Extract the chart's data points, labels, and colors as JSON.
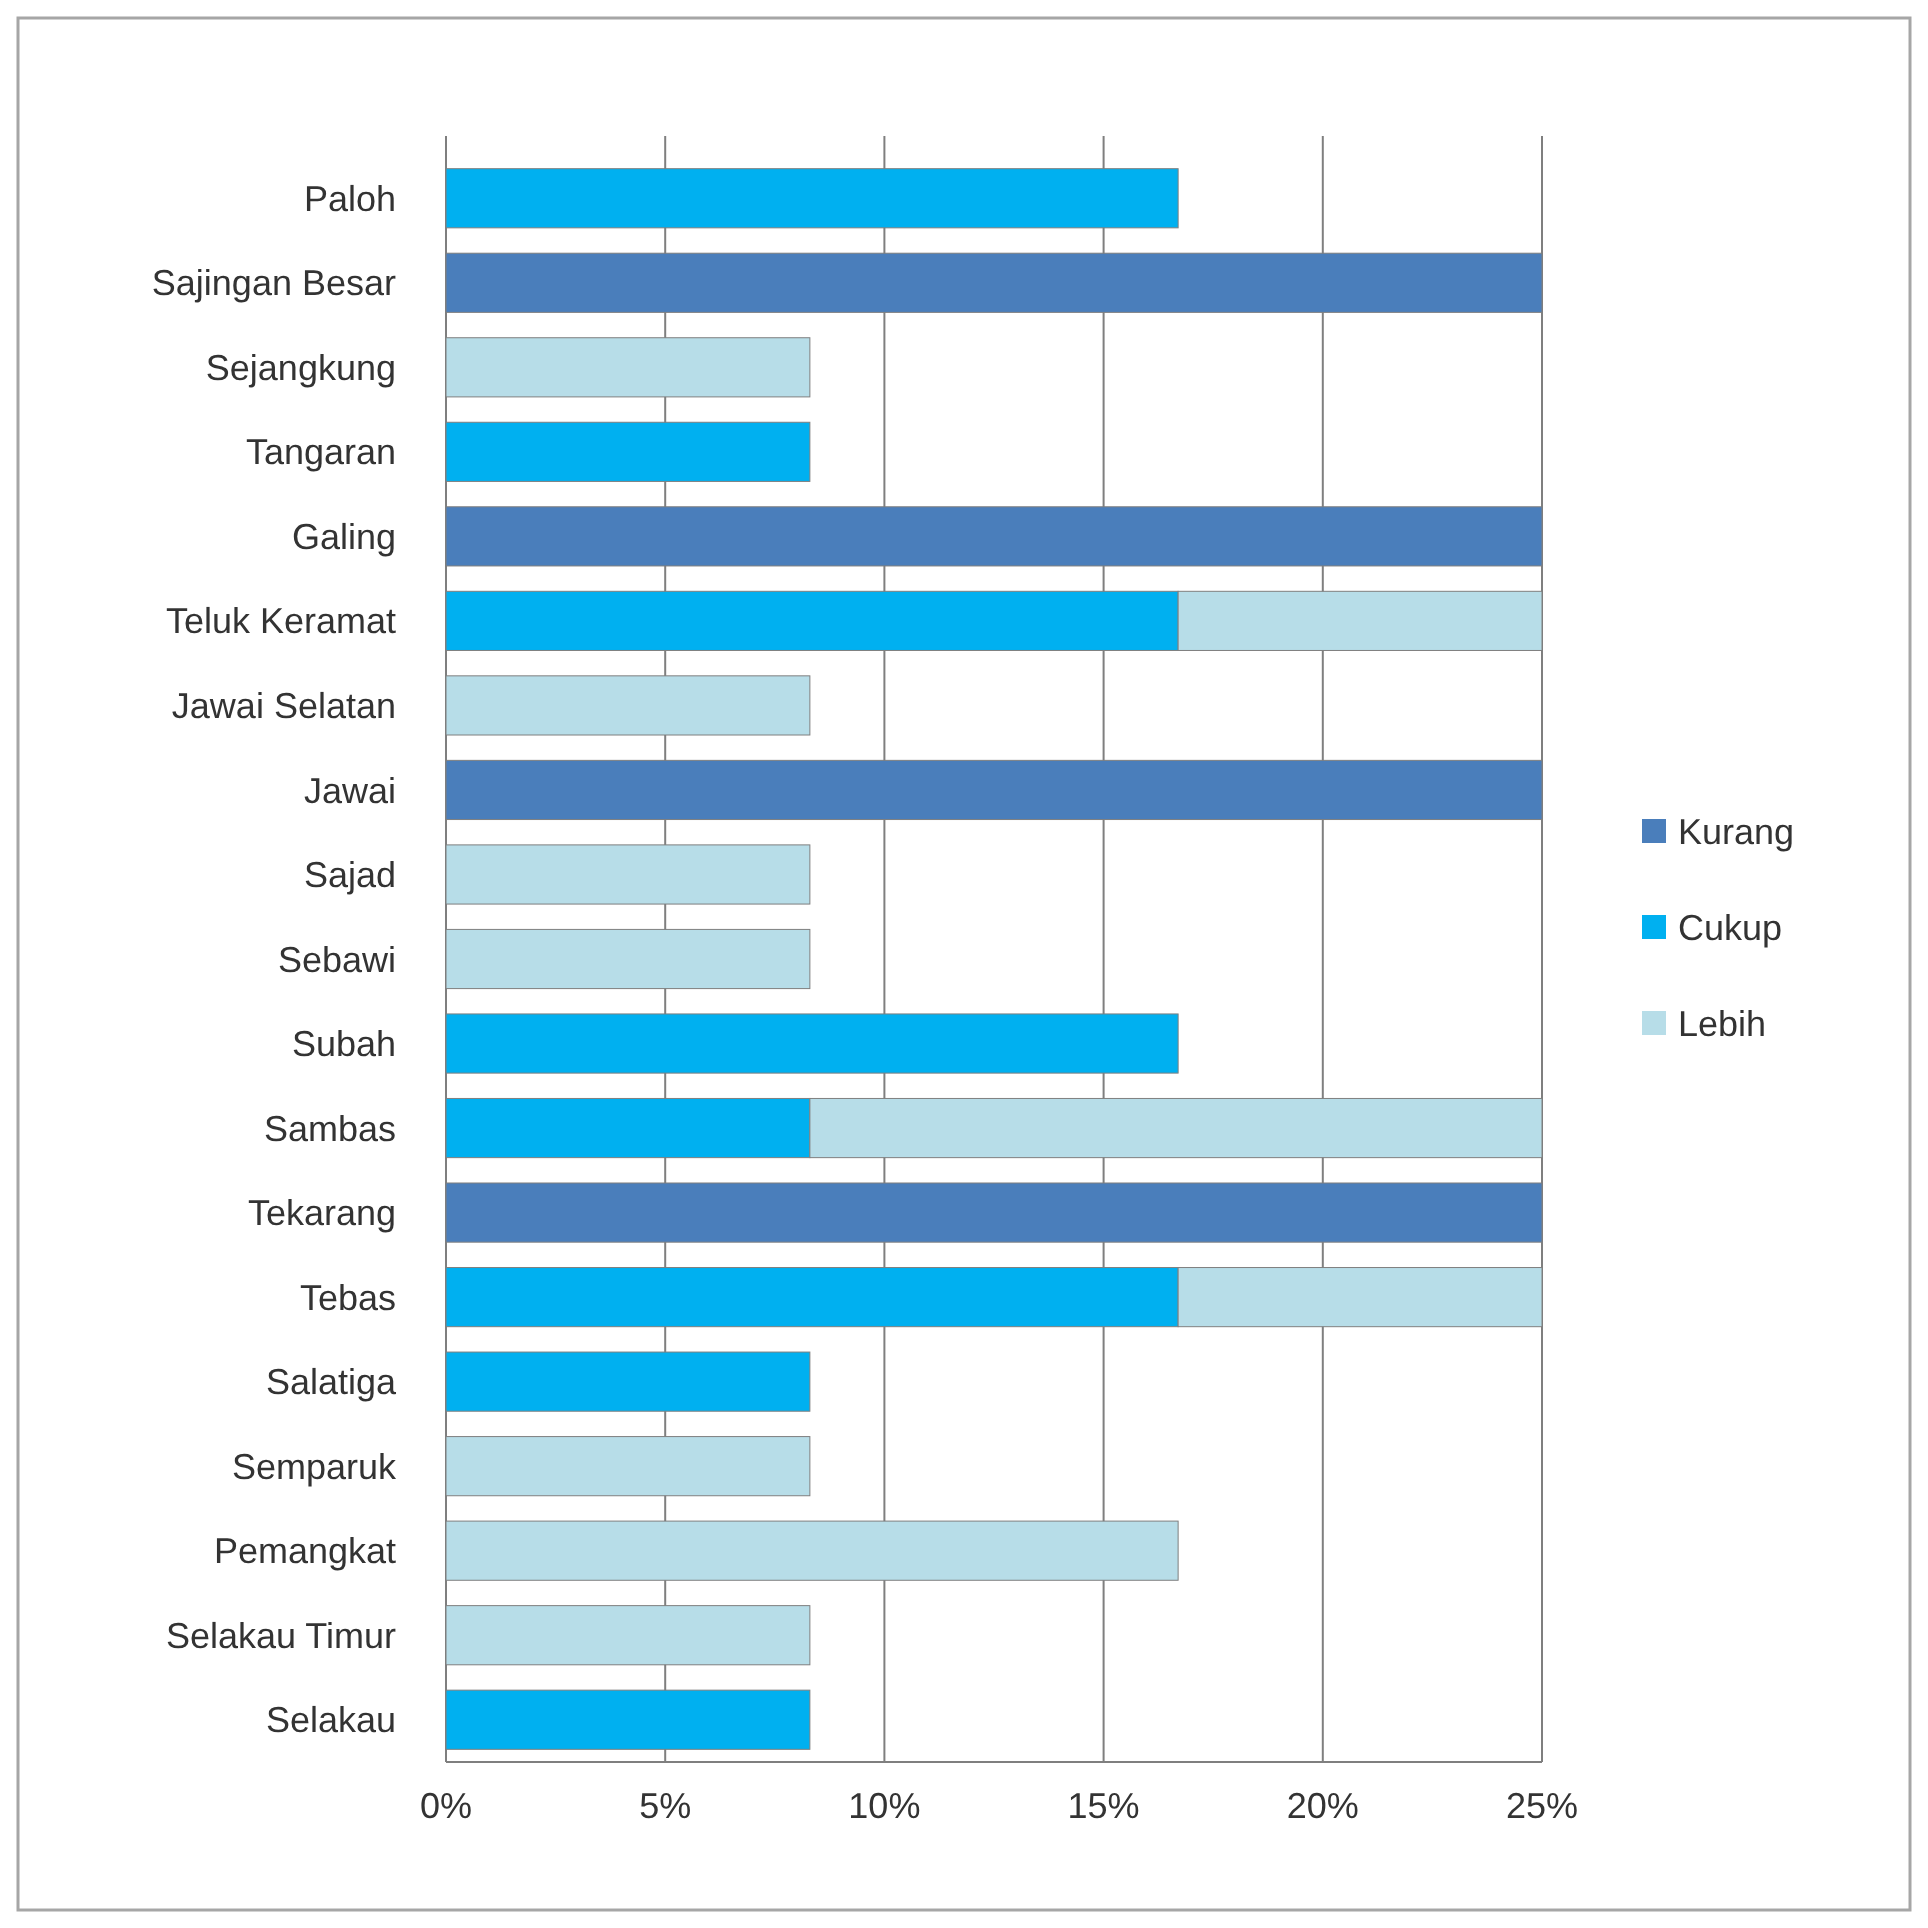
{
  "chart_data": {
    "type": "bar",
    "orientation": "horizontal",
    "stacked": true,
    "categories": [
      "Paloh",
      "Sajingan Besar",
      "Sejangkung",
      "Tangaran",
      "Galing",
      "Teluk Keramat",
      "Jawai Selatan",
      "Jawai",
      "Sajad",
      "Sebawi",
      "Subah",
      "Sambas",
      "Tekarang",
      "Tebas",
      "Salatiga",
      "Semparuk",
      "Pemangkat",
      "Selakau Timur",
      "Selakau"
    ],
    "series": [
      {
        "name": "Kurang",
        "color": "#4a7ebb",
        "values": [
          null,
          25,
          null,
          null,
          25,
          null,
          null,
          25,
          null,
          null,
          null,
          null,
          25,
          null,
          null,
          null,
          null,
          null,
          null
        ]
      },
      {
        "name": "Cukup",
        "color": "#00b0f0",
        "values": [
          16.7,
          null,
          null,
          8.3,
          null,
          16.7,
          null,
          null,
          null,
          null,
          16.7,
          8.3,
          null,
          16.7,
          8.3,
          null,
          null,
          null,
          8.3
        ]
      },
      {
        "name": "Lebih",
        "color": "#b7dde8",
        "values": [
          null,
          null,
          8.3,
          null,
          null,
          8.3,
          8.3,
          null,
          8.3,
          8.3,
          null,
          16.7,
          null,
          8.3,
          null,
          8.3,
          16.7,
          8.3,
          null
        ]
      }
    ],
    "xlim": [
      0,
      25
    ],
    "xticks": [
      {
        "value": 0,
        "label": "0%"
      },
      {
        "value": 5,
        "label": "5%"
      },
      {
        "value": 10,
        "label": "10%"
      },
      {
        "value": 15,
        "label": "15%"
      },
      {
        "value": 20,
        "label": "20%"
      },
      {
        "value": 25,
        "label": "25%"
      }
    ],
    "grid": "x",
    "legend": "right"
  }
}
